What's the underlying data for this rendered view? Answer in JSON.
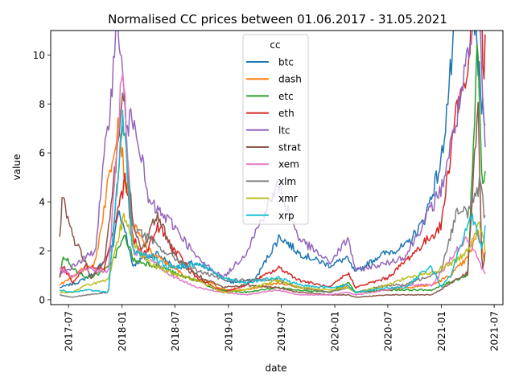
{
  "chart_data": {
    "type": "line",
    "title": "Normalised CC prices between 01.06.2017 - 31.05.2021",
    "xlabel": "date",
    "ylabel": "value",
    "xlim": [
      "2017-05-01",
      "2021-07-31"
    ],
    "ylim": [
      -0.2,
      11.0
    ],
    "x_ticks": [
      "2017-07",
      "2018-01",
      "2018-07",
      "2019-01",
      "2019-07",
      "2020-01",
      "2020-07",
      "2021-01",
      "2021-07"
    ],
    "y_ticks": [
      0,
      2,
      4,
      6,
      8,
      10
    ],
    "grid": false,
    "legend": {
      "title": "cc",
      "position": "upper center"
    },
    "series": [
      {
        "name": "btc",
        "color": "#1f77b4",
        "points": [
          [
            "2017-06-01",
            0.5
          ],
          [
            "2017-08-01",
            0.7
          ],
          [
            "2017-10-01",
            1.1
          ],
          [
            "2017-12-01",
            2.2
          ],
          [
            "2017-12-17",
            3.6
          ],
          [
            "2018-01-15",
            2.7
          ],
          [
            "2018-02-06",
            1.4
          ],
          [
            "2018-03-15",
            1.7
          ],
          [
            "2018-05-01",
            1.9
          ],
          [
            "2018-07-01",
            1.3
          ],
          [
            "2018-09-01",
            1.5
          ],
          [
            "2018-11-20",
            1.1
          ],
          [
            "2019-01-01",
            0.7
          ],
          [
            "2019-04-01",
            0.8
          ],
          [
            "2019-06-26",
            2.6
          ],
          [
            "2019-09-01",
            1.9
          ],
          [
            "2019-12-15",
            1.4
          ],
          [
            "2020-02-10",
            1.7
          ],
          [
            "2020-03-13",
            1.1
          ],
          [
            "2020-06-01",
            1.8
          ],
          [
            "2020-09-01",
            2.2
          ],
          [
            "2020-11-01",
            3.2
          ],
          [
            "2020-12-31",
            5.6
          ],
          [
            "2021-02-20",
            11.4
          ],
          [
            "2021-04-14",
            12.7
          ],
          [
            "2021-05-19",
            8.0
          ],
          [
            "2021-05-31",
            7.7
          ]
        ]
      },
      {
        "name": "dash",
        "color": "#ff7f0e",
        "points": [
          [
            "2017-06-01",
            0.6
          ],
          [
            "2017-08-01",
            1.1
          ],
          [
            "2017-10-01",
            1.5
          ],
          [
            "2017-12-20",
            7.5
          ],
          [
            "2018-01-10",
            5.0
          ],
          [
            "2018-02-10",
            3.0
          ],
          [
            "2018-04-01",
            2.0
          ],
          [
            "2018-06-01",
            1.5
          ],
          [
            "2018-08-15",
            0.9
          ],
          [
            "2018-11-01",
            0.7
          ],
          [
            "2018-12-15",
            0.4
          ],
          [
            "2019-03-01",
            0.4
          ],
          [
            "2019-06-20",
            0.7
          ],
          [
            "2019-09-01",
            0.5
          ],
          [
            "2019-12-15",
            0.3
          ],
          [
            "2020-02-15",
            0.6
          ],
          [
            "2020-03-13",
            0.3
          ],
          [
            "2020-07-01",
            0.4
          ],
          [
            "2020-09-01",
            0.5
          ],
          [
            "2020-12-01",
            0.6
          ],
          [
            "2021-02-01",
            1.0
          ],
          [
            "2021-04-01",
            1.7
          ],
          [
            "2021-05-08",
            2.8
          ],
          [
            "2021-05-31",
            1.5
          ]
        ]
      },
      {
        "name": "etc",
        "color": "#2ca02c",
        "points": [
          [
            "2017-06-01",
            1.0
          ],
          [
            "2017-06-15",
            1.8
          ],
          [
            "2017-08-01",
            1.1
          ],
          [
            "2017-09-15",
            0.9
          ],
          [
            "2017-11-15",
            1.3
          ],
          [
            "2018-01-13",
            2.6
          ],
          [
            "2018-02-10",
            1.6
          ],
          [
            "2018-05-01",
            1.4
          ],
          [
            "2018-07-15",
            1.0
          ],
          [
            "2018-09-15",
            0.8
          ],
          [
            "2018-11-20",
            0.4
          ],
          [
            "2019-03-01",
            0.3
          ],
          [
            "2019-06-20",
            0.5
          ],
          [
            "2019-09-01",
            0.4
          ],
          [
            "2019-12-15",
            0.3
          ],
          [
            "2020-02-15",
            0.7
          ],
          [
            "2020-03-13",
            0.3
          ],
          [
            "2020-07-01",
            0.4
          ],
          [
            "2020-09-01",
            0.4
          ],
          [
            "2020-12-01",
            0.4
          ],
          [
            "2021-02-15",
            0.8
          ],
          [
            "2021-04-01",
            1.0
          ],
          [
            "2021-05-06",
            10.5
          ],
          [
            "2021-05-20",
            4.5
          ],
          [
            "2021-05-31",
            5.5
          ]
        ]
      },
      {
        "name": "eth",
        "color": "#d62728",
        "points": [
          [
            "2017-06-01",
            0.9
          ],
          [
            "2017-06-12",
            1.4
          ],
          [
            "2017-07-15",
            0.7
          ],
          [
            "2017-09-01",
            1.4
          ],
          [
            "2017-11-01",
            1.3
          ],
          [
            "2018-01-13",
            5.0
          ],
          [
            "2018-02-06",
            2.5
          ],
          [
            "2018-03-15",
            1.8
          ],
          [
            "2018-05-06",
            3.0
          ],
          [
            "2018-07-01",
            2.0
          ],
          [
            "2018-09-15",
            0.9
          ],
          [
            "2018-12-15",
            0.3
          ],
          [
            "2019-03-01",
            0.6
          ],
          [
            "2019-06-26",
            1.3
          ],
          [
            "2019-09-01",
            0.8
          ],
          [
            "2019-12-15",
            0.5
          ],
          [
            "2020-02-15",
            1.1
          ],
          [
            "2020-03-13",
            0.5
          ],
          [
            "2020-07-01",
            0.9
          ],
          [
            "2020-09-01",
            1.6
          ],
          [
            "2020-12-31",
            3.0
          ],
          [
            "2021-02-20",
            7.8
          ],
          [
            "2021-04-01",
            9.2
          ],
          [
            "2021-05-12",
            16.5
          ],
          [
            "2021-05-23",
            9.0
          ],
          [
            "2021-05-31",
            10.5
          ]
        ]
      },
      {
        "name": "ltc",
        "color": "#9467bd",
        "points": [
          [
            "2017-06-01",
            1.0
          ],
          [
            "2017-08-01",
            1.5
          ],
          [
            "2017-10-01",
            2.0
          ],
          [
            "2017-12-19",
            11.5
          ],
          [
            "2018-01-15",
            7.0
          ],
          [
            "2018-02-15",
            7.5
          ],
          [
            "2018-04-01",
            4.0
          ],
          [
            "2018-07-01",
            3.0
          ],
          [
            "2018-09-15",
            1.7
          ],
          [
            "2018-12-15",
            0.9
          ],
          [
            "2019-03-01",
            1.9
          ],
          [
            "2019-06-20",
            4.7
          ],
          [
            "2019-09-01",
            2.5
          ],
          [
            "2019-12-15",
            1.5
          ],
          [
            "2020-02-15",
            2.5
          ],
          [
            "2020-03-13",
            1.2
          ],
          [
            "2020-07-01",
            1.5
          ],
          [
            "2020-09-01",
            1.8
          ],
          [
            "2020-12-31",
            4.5
          ],
          [
            "2021-02-20",
            7.3
          ],
          [
            "2021-05-10",
            12.0
          ],
          [
            "2021-05-31",
            6.0
          ]
        ]
      },
      {
        "name": "strat",
        "color": "#8c564b",
        "points": [
          [
            "2017-06-01",
            2.5
          ],
          [
            "2017-06-10",
            4.3
          ],
          [
            "2017-07-15",
            2.6
          ],
          [
            "2017-09-01",
            1.5
          ],
          [
            "2017-09-15",
            0.9
          ],
          [
            "2017-11-01",
            1.5
          ],
          [
            "2018-01-08",
            8.5
          ],
          [
            "2018-02-06",
            3.0
          ],
          [
            "2018-03-10",
            2.0
          ],
          [
            "2018-05-01",
            3.5
          ],
          [
            "2018-07-01",
            1.8
          ],
          [
            "2018-08-15",
            1.2
          ],
          [
            "2018-12-15",
            0.5
          ],
          [
            "2019-03-01",
            0.6
          ],
          [
            "2019-06-20",
            0.5
          ],
          [
            "2019-09-01",
            0.3
          ],
          [
            "2019-12-15",
            0.2
          ],
          [
            "2020-02-15",
            0.2
          ],
          [
            "2020-03-13",
            0.1
          ],
          [
            "2020-07-01",
            0.2
          ],
          [
            "2020-09-01",
            0.2
          ],
          [
            "2020-12-01",
            0.2
          ],
          [
            "2021-02-20",
            0.8
          ],
          [
            "2021-04-01",
            1.1
          ],
          [
            "2021-05-07",
            8.3
          ],
          [
            "2021-05-20",
            1.2
          ],
          [
            "2021-05-31",
            1.8
          ]
        ]
      },
      {
        "name": "xem",
        "color": "#e377c2",
        "points": [
          [
            "2017-06-01",
            1.3
          ],
          [
            "2017-07-15",
            0.9
          ],
          [
            "2017-09-01",
            1.3
          ],
          [
            "2017-11-15",
            1.1
          ],
          [
            "2018-01-04",
            9.8
          ],
          [
            "2018-02-06",
            2.0
          ],
          [
            "2018-04-01",
            1.8
          ],
          [
            "2018-06-15",
            1.0
          ],
          [
            "2018-09-15",
            0.5
          ],
          [
            "2018-12-15",
            0.3
          ],
          [
            "2019-03-01",
            0.2
          ],
          [
            "2019-06-20",
            0.4
          ],
          [
            "2019-09-01",
            0.2
          ],
          [
            "2019-12-15",
            0.2
          ],
          [
            "2020-02-15",
            0.3
          ],
          [
            "2020-03-13",
            0.2
          ],
          [
            "2020-07-01",
            0.4
          ],
          [
            "2020-09-01",
            0.6
          ],
          [
            "2020-12-01",
            0.6
          ],
          [
            "2021-02-20",
            2.0
          ],
          [
            "2021-04-01",
            2.5
          ],
          [
            "2021-05-10",
            1.5
          ],
          [
            "2021-05-31",
            1.0
          ]
        ]
      },
      {
        "name": "xlm",
        "color": "#7f7f7f",
        "points": [
          [
            "2017-06-01",
            0.2
          ],
          [
            "2017-07-15",
            0.1
          ],
          [
            "2017-09-01",
            0.2
          ],
          [
            "2017-11-15",
            0.3
          ],
          [
            "2018-01-04",
            7.5
          ],
          [
            "2018-02-06",
            3.0
          ],
          [
            "2018-04-01",
            2.5
          ],
          [
            "2018-06-15",
            1.8
          ],
          [
            "2018-09-15",
            1.2
          ],
          [
            "2018-12-15",
            0.8
          ],
          [
            "2019-03-01",
            0.8
          ],
          [
            "2019-06-20",
            0.8
          ],
          [
            "2019-09-01",
            0.5
          ],
          [
            "2019-12-15",
            0.3
          ],
          [
            "2020-02-15",
            0.5
          ],
          [
            "2020-03-13",
            0.3
          ],
          [
            "2020-07-01",
            0.6
          ],
          [
            "2020-09-01",
            0.6
          ],
          [
            "2020-12-31",
            1.2
          ],
          [
            "2021-02-20",
            3.5
          ],
          [
            "2021-04-01",
            3.6
          ],
          [
            "2021-05-15",
            4.8
          ],
          [
            "2021-05-31",
            3.2
          ]
        ]
      },
      {
        "name": "xmr",
        "color": "#bcbd22",
        "points": [
          [
            "2017-06-01",
            0.3
          ],
          [
            "2017-07-15",
            0.3
          ],
          [
            "2017-09-01",
            0.6
          ],
          [
            "2017-11-15",
            0.8
          ],
          [
            "2018-01-08",
            3.5
          ],
          [
            "2018-02-10",
            2.3
          ],
          [
            "2018-04-01",
            1.5
          ],
          [
            "2018-06-15",
            1.1
          ],
          [
            "2018-09-15",
            0.8
          ],
          [
            "2018-12-15",
            0.3
          ],
          [
            "2019-03-01",
            0.4
          ],
          [
            "2019-06-20",
            0.8
          ],
          [
            "2019-09-01",
            0.5
          ],
          [
            "2019-12-15",
            0.4
          ],
          [
            "2020-02-15",
            0.5
          ],
          [
            "2020-03-13",
            0.3
          ],
          [
            "2020-07-01",
            0.6
          ],
          [
            "2020-09-01",
            0.9
          ],
          [
            "2020-12-01",
            1.1
          ],
          [
            "2021-02-20",
            1.6
          ],
          [
            "2021-04-01",
            2.0
          ],
          [
            "2021-05-10",
            3.3
          ],
          [
            "2021-05-31",
            2.0
          ]
        ]
      },
      {
        "name": "xrp",
        "color": "#17becf",
        "points": [
          [
            "2017-06-01",
            0.4
          ],
          [
            "2017-07-15",
            0.3
          ],
          [
            "2017-09-01",
            0.4
          ],
          [
            "2017-11-15",
            0.3
          ],
          [
            "2018-01-04",
            7.7
          ],
          [
            "2018-02-06",
            2.0
          ],
          [
            "2018-04-01",
            1.8
          ],
          [
            "2018-06-15",
            1.3
          ],
          [
            "2018-09-21",
            1.5
          ],
          [
            "2018-12-15",
            0.9
          ],
          [
            "2019-03-01",
            0.7
          ],
          [
            "2019-06-20",
            0.9
          ],
          [
            "2019-09-01",
            0.6
          ],
          [
            "2019-12-15",
            0.5
          ],
          [
            "2020-02-15",
            0.6
          ],
          [
            "2020-03-13",
            0.3
          ],
          [
            "2020-07-01",
            0.5
          ],
          [
            "2020-09-01",
            0.5
          ],
          [
            "2020-11-24",
            1.4
          ],
          [
            "2021-01-01",
            0.5
          ],
          [
            "2021-02-01",
            1.0
          ],
          [
            "2021-04-14",
            3.5
          ],
          [
            "2021-05-20",
            2.0
          ],
          [
            "2021-05-31",
            2.9
          ]
        ]
      }
    ]
  }
}
